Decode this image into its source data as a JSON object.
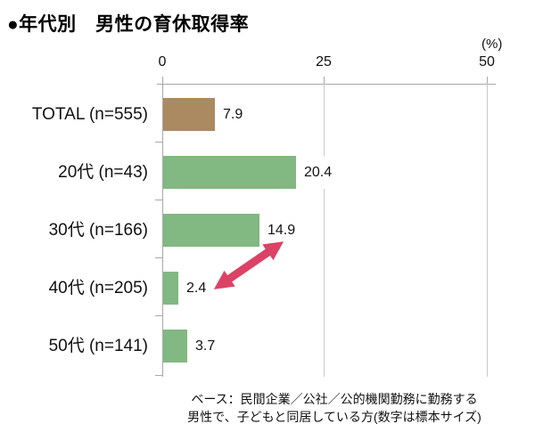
{
  "title": "●年代別　男性の育休取得率",
  "chart_data": {
    "type": "bar",
    "orientation": "horizontal",
    "title": "年代別 男性の育休取得率",
    "unit_label": "(%)",
    "xlim": [
      0,
      50
    ],
    "xticks": [
      "0",
      "25",
      "50"
    ],
    "categories": [
      "TOTAL (n=555)",
      "20代 (n=43)",
      "30代 (n=166)",
      "40代 (n=205)",
      "50代 (n=141)"
    ],
    "values": [
      7.9,
      20.4,
      14.9,
      2.4,
      3.7
    ],
    "value_labels": [
      "7.9",
      "20.4",
      "14.9",
      "2.4",
      "3.7"
    ],
    "bar_colors": [
      "#AB8A61",
      "#82B882",
      "#82B882",
      "#82B882",
      "#82B882"
    ],
    "grid": "vertical-lines-at-25-and-50",
    "annotation": {
      "type": "double-headed-arrow",
      "color": "#DB4265",
      "between_categories": [
        "30代 (n=166)",
        "40代 (n=205)"
      ]
    }
  },
  "footer": {
    "line1": "ベース：民間企業／公社／公的機関勤務に勤務する",
    "line2": "男性で、子どもと同居している方(数字は標本サイズ)"
  }
}
